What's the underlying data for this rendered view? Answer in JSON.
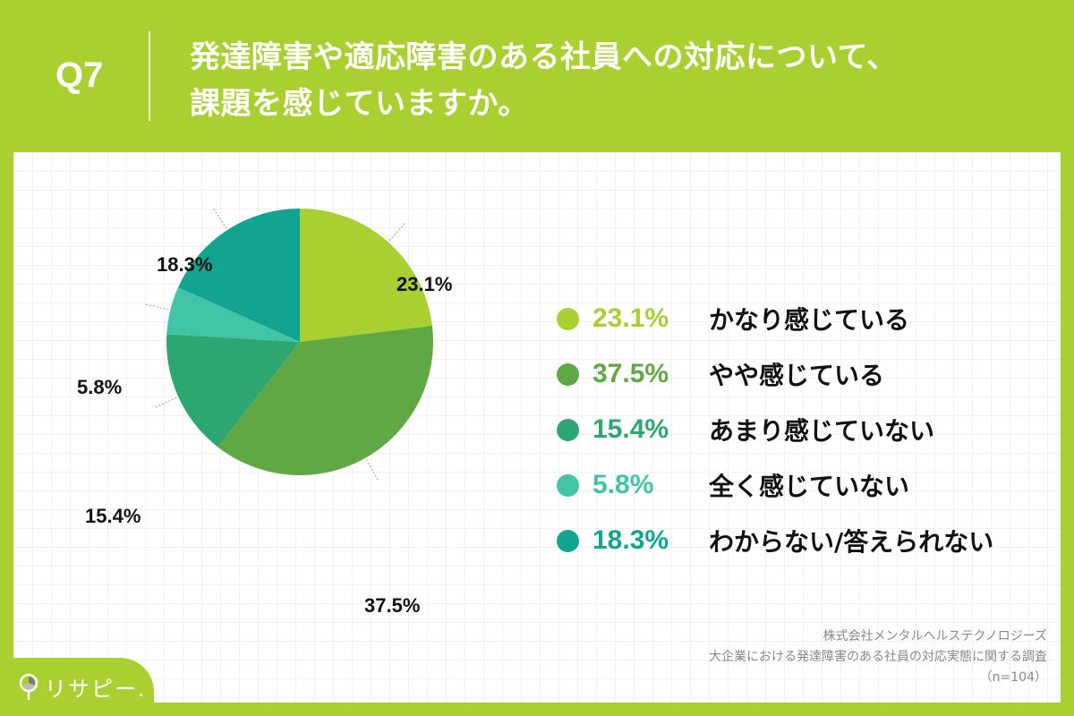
{
  "header": {
    "question_number": "Q7",
    "title_line1": "発達障害や適応障害のある社員への対応について、",
    "title_line2": "課題を感じていますか。"
  },
  "colors": {
    "background": "#a9cf31",
    "slice1": "#a9cf31",
    "slice2": "#5fa843",
    "slice3": "#2ea672",
    "slice4": "#42c4a7",
    "slice5": "#12a391"
  },
  "chart_data": {
    "type": "pie",
    "title": "発達障害や適応障害のある社員への対応について、課題を感じていますか。",
    "categories": [
      "かなり感じている",
      "やや感じている",
      "あまり感じていない",
      "全く感じていない",
      "わからない/答えられない"
    ],
    "values": [
      23.1,
      37.5,
      15.4,
      5.8,
      18.3
    ],
    "unit": "%",
    "legend_position": "right",
    "n": 104
  },
  "pie_labels": {
    "s1": "23.1%",
    "s2": "37.5%",
    "s3": "15.4%",
    "s4": "5.8%",
    "s5": "18.3%"
  },
  "legend": [
    {
      "pct": "23.1%",
      "label": "かなり感じている",
      "color": "#a9cf31"
    },
    {
      "pct": "37.5%",
      "label": "やや感じている",
      "color": "#5fa843"
    },
    {
      "pct": "15.4%",
      "label": "あまり感じていない",
      "color": "#2ea672"
    },
    {
      "pct": "5.8%",
      "label": "全く感じていない",
      "color": "#42c4a7"
    },
    {
      "pct": "18.3%",
      "label": "わからない/答えられない",
      "color": "#12a391"
    }
  ],
  "source": {
    "company": "株式会社メンタルヘルステクノロジーズ",
    "survey": "大企業における発達障害のある社員の対応実態に関する調査",
    "sample": "（n=104）"
  },
  "logo": {
    "text": "リサピー"
  }
}
